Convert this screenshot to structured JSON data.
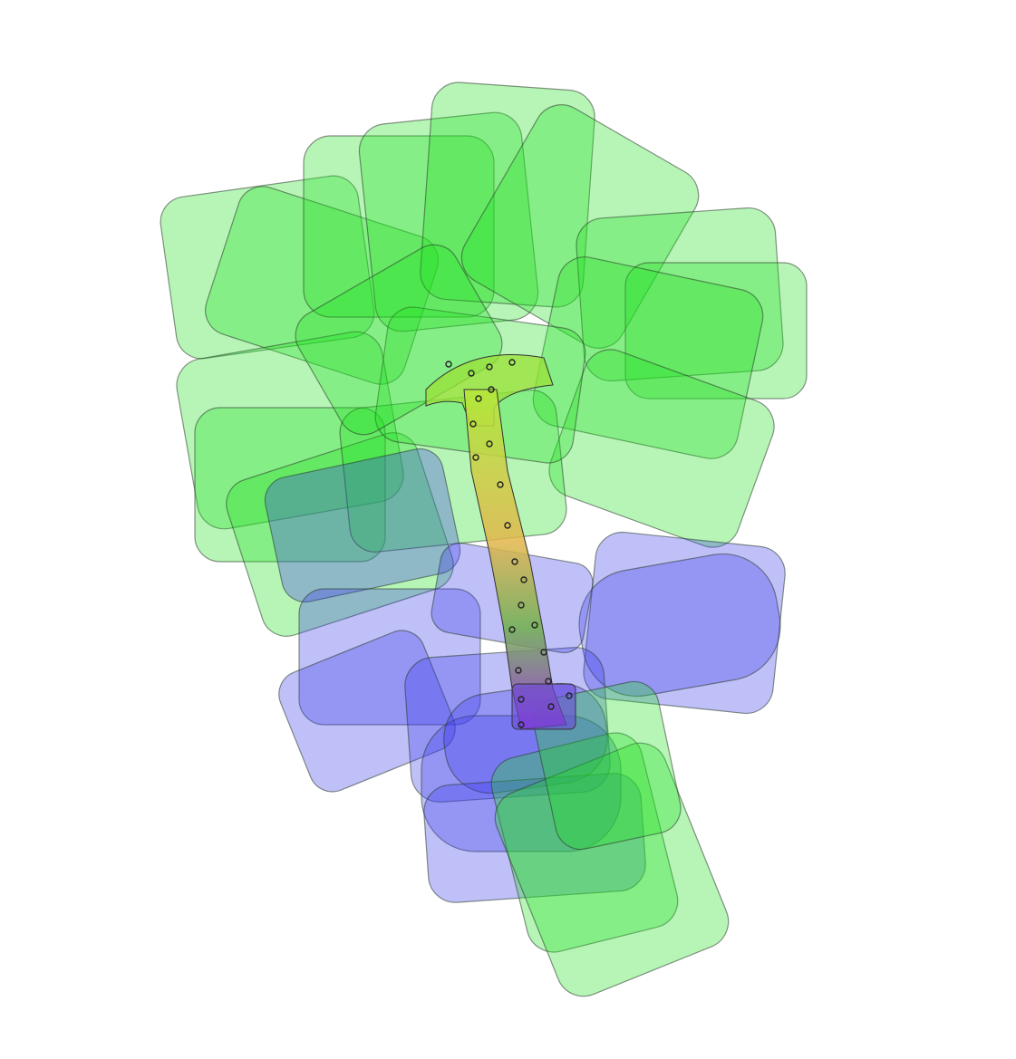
{
  "scene": {
    "description_tag": "3d-render",
    "colors": {
      "background": "#ffffff",
      "upper_cluster": "#1fe01f",
      "lower_cluster": "#3a3ae8",
      "core_gradient_top": "#9be02a",
      "core_gradient_mid": "#e0b83a",
      "core_gradient_bottom": "#8a2ad0"
    },
    "clusters": [
      "upper-cluster",
      "lower-cluster",
      "tail-cluster"
    ]
  }
}
